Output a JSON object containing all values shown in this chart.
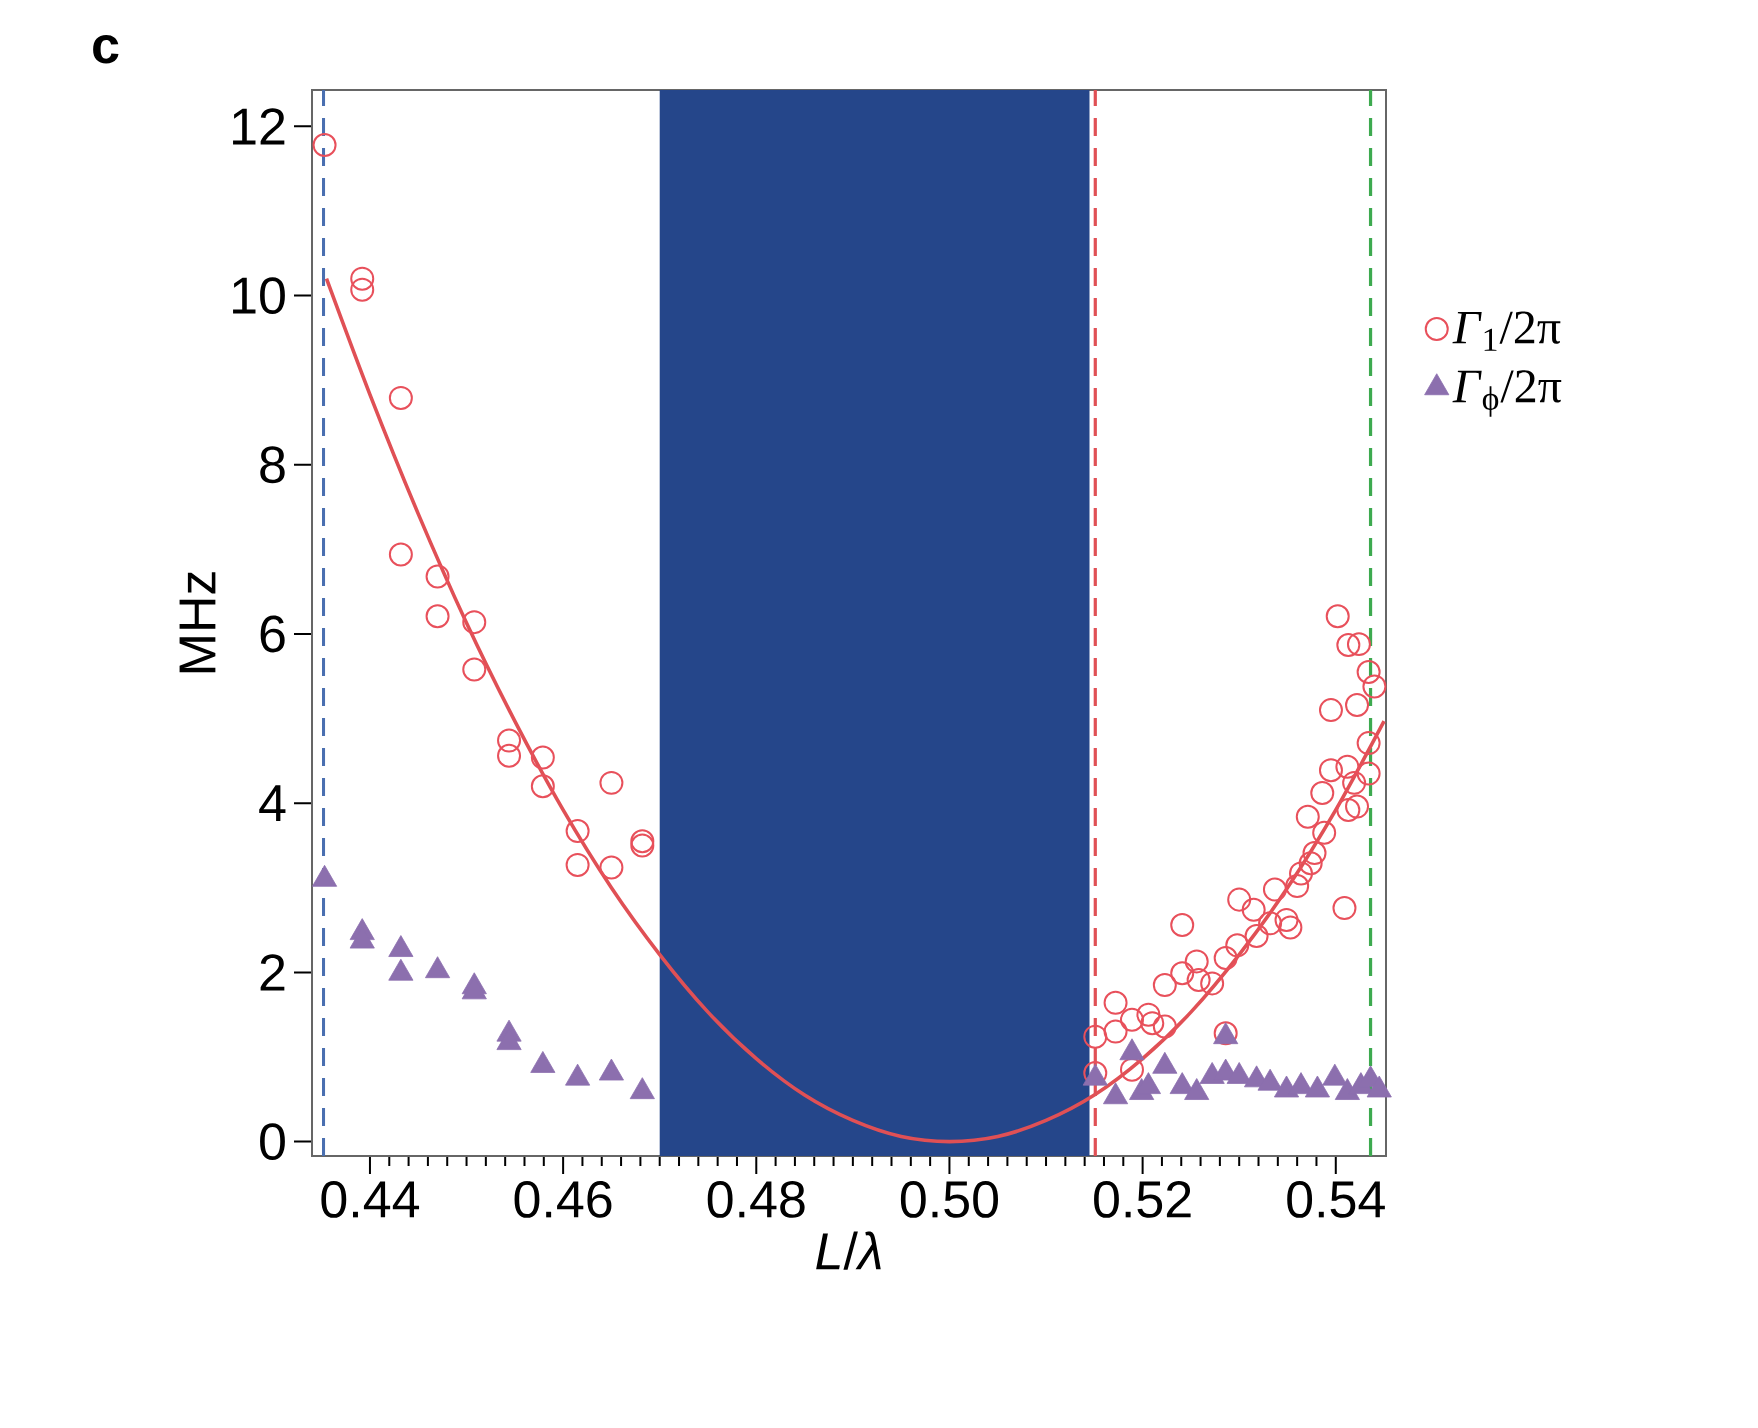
{
  "chart_data": {
    "type": "scatter",
    "title": "c",
    "xlabel": "*L*/*λ*",
    "ylabel": "MHz",
    "xlim": [
      0.434,
      0.5452
    ],
    "ylim": [
      -0.17,
      12.43
    ],
    "xticks": [
      0.44,
      0.46,
      0.48,
      {
        "value": 0.5,
        "label": "0.50"
      },
      0.52,
      0.54
    ],
    "yticks": [
      0,
      2,
      4,
      6,
      8,
      10,
      12
    ],
    "legend": "right",
    "bands": [
      {
        "axis": "x",
        "from": 0.47,
        "to": 0.5145,
        "color": "#25468a"
      }
    ],
    "ref_lines": [
      {
        "axis": "x",
        "value": 0.4352,
        "color": "#4a6fb0",
        "line_style": "dashed"
      },
      {
        "axis": "x",
        "value": 0.5151,
        "color": "#e05055",
        "line_style": "dashed"
      },
      {
        "axis": "x",
        "value": 0.5436,
        "color": "#3daa4f",
        "line_style": "dashed"
      }
    ],
    "series": [
      {
        "type": "line",
        "color": "#e05055",
        "x": [
          0.4355,
          0.44,
          0.445,
          0.45,
          0.455,
          0.46,
          0.465,
          0.47,
          0.475,
          0.48,
          0.485,
          0.49,
          0.495,
          0.5,
          0.505,
          0.51,
          0.515,
          0.52,
          0.525,
          0.53,
          0.535,
          0.54,
          0.545
        ],
        "values": [
          10.2,
          8.83,
          7.42,
          6.13,
          4.97,
          3.92,
          3.0,
          2.21,
          1.53,
          0.98,
          0.55,
          0.25,
          0.06,
          0,
          0.06,
          0.25,
          0.55,
          0.98,
          1.53,
          2.21,
          3.0,
          3.92,
          4.97
        ]
      },
      {
        "name": "*Γ*$_{1}$/2π",
        "marker": "circle",
        "color": "#e8505b",
        "x": [
          0.4353,
          0.4392,
          0.4392,
          0.4432,
          0.4432,
          0.447,
          0.447,
          0.4508,
          0.4508,
          0.4544,
          0.4544,
          0.4579,
          0.4579,
          0.4615,
          0.4615,
          0.465,
          0.465,
          0.4682,
          0.4682,
          0.5151,
          0.5151,
          0.5172,
          0.5172,
          0.5189,
          0.5189,
          0.5206,
          0.521,
          0.5223,
          0.5223,
          0.5241,
          0.5241,
          0.5256,
          0.5258,
          0.5272,
          0.5286,
          0.5286,
          0.53,
          0.5298,
          0.5315,
          0.5318,
          0.5332,
          0.5337,
          0.5349,
          0.5353,
          0.536,
          0.5364,
          0.5374,
          0.5378,
          0.5388,
          0.5371,
          0.5386,
          0.5395,
          0.5409,
          0.5395,
          0.5402,
          0.5413,
          0.5424,
          0.5422,
          0.5412,
          0.5419,
          0.5413,
          0.5422,
          0.5434,
          0.5434,
          0.5434,
          0.544
        ],
        "values": [
          11.78,
          10.2,
          10.07,
          8.79,
          6.94,
          6.68,
          6.21,
          6.14,
          5.58,
          4.74,
          4.56,
          4.54,
          4.2,
          3.67,
          3.27,
          4.24,
          3.24,
          3.55,
          3.5,
          1.24,
          0.81,
          1.64,
          1.3,
          1.44,
          0.85,
          1.5,
          1.4,
          1.36,
          1.85,
          2.56,
          1.99,
          2.13,
          1.91,
          1.87,
          2.17,
          1.28,
          2.86,
          2.32,
          2.74,
          2.43,
          2.58,
          2.98,
          2.62,
          2.53,
          3.02,
          3.17,
          3.29,
          3.41,
          3.65,
          3.84,
          4.12,
          4.39,
          2.76,
          5.1,
          6.21,
          5.87,
          5.88,
          5.16,
          4.43,
          4.24,
          3.92,
          3.96,
          5.55,
          4.71,
          4.35,
          5.38
        ]
      },
      {
        "name": "*Γ*$_{ϕ}$/2π",
        "marker": "triangle",
        "color": "#8c6fae",
        "x": [
          0.4353,
          0.4392,
          0.4392,
          0.4432,
          0.4432,
          0.447,
          0.4508,
          0.4508,
          0.4544,
          0.4544,
          0.4579,
          0.4615,
          0.465,
          0.4682,
          0.5151,
          0.5172,
          0.5189,
          0.5199,
          0.5206,
          0.5223,
          0.5241,
          0.5256,
          0.5272,
          0.5286,
          0.5286,
          0.53,
          0.5318,
          0.5332,
          0.5349,
          0.5364,
          0.5381,
          0.5399,
          0.5412,
          0.5426,
          0.5436,
          0.5445
        ],
        "values": [
          3.1,
          2.47,
          2.37,
          2.27,
          1.99,
          2.02,
          1.83,
          1.77,
          1.27,
          1.17,
          0.9,
          0.75,
          0.81,
          0.59,
          0.75,
          0.53,
          1.05,
          0.58,
          0.65,
          0.89,
          0.65,
          0.58,
          0.77,
          1.24,
          0.81,
          0.77,
          0.73,
          0.69,
          0.61,
          0.65,
          0.61,
          0.75,
          0.58,
          0.65,
          0.73,
          0.61
        ]
      }
    ]
  }
}
